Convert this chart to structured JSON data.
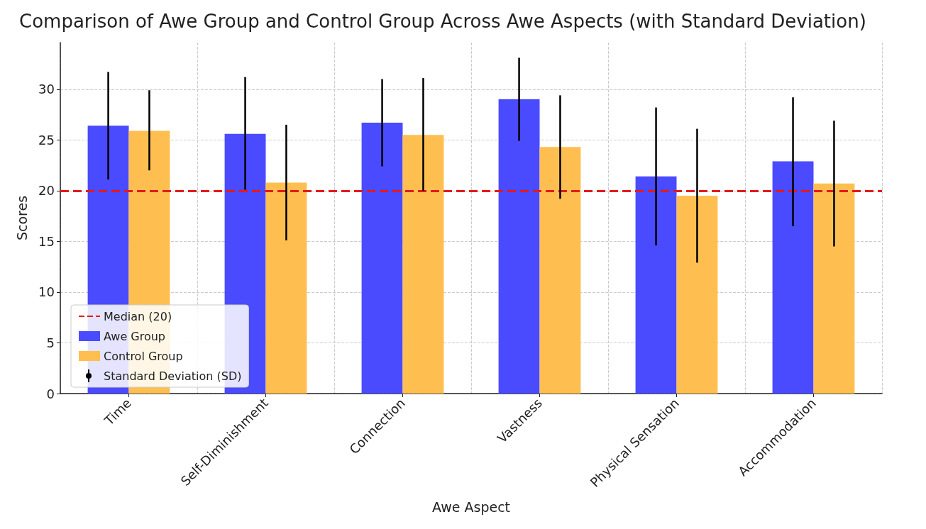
{
  "chart_data": {
    "type": "bar",
    "title": "Comparison of Awe Group and Control Group Across Awe Aspects (with Standard Deviation)",
    "xlabel": "Awe Aspect",
    "ylabel": "Scores",
    "categories": [
      "Time",
      "Self-Diminishment",
      "Connection",
      "Vastness",
      "Physical Sensation",
      "Accommodation"
    ],
    "series": [
      {
        "name": "Awe Group",
        "color": "#4a4aff",
        "values": [
          26.4,
          25.6,
          26.7,
          29.0,
          21.4,
          22.9
        ],
        "errors": [
          [
            21.1,
            31.7
          ],
          [
            20.1,
            31.2
          ],
          [
            22.4,
            31.0
          ],
          [
            24.9,
            33.1
          ],
          [
            14.6,
            28.2
          ],
          [
            16.5,
            29.2
          ]
        ]
      },
      {
        "name": "Control Group",
        "color": "#ffbf50",
        "values": [
          25.9,
          20.8,
          25.5,
          24.3,
          19.5,
          20.7
        ],
        "errors": [
          [
            22.0,
            29.9
          ],
          [
            15.1,
            26.5
          ],
          [
            20.0,
            31.1
          ],
          [
            19.2,
            29.4
          ],
          [
            12.9,
            26.1
          ],
          [
            14.5,
            26.9
          ]
        ]
      }
    ],
    "ylim": [
      0,
      34.6
    ],
    "yticks": [
      0,
      5,
      10,
      15,
      20,
      25,
      30
    ],
    "ref_lines": [
      {
        "axis": "y",
        "value": 20,
        "label": "Median (20)",
        "color": "#e31a1c",
        "line_style": "dashed"
      }
    ],
    "annotations": [
      "Standard Deviation (SD)"
    ],
    "grid": true,
    "legend": "bottom left"
  }
}
